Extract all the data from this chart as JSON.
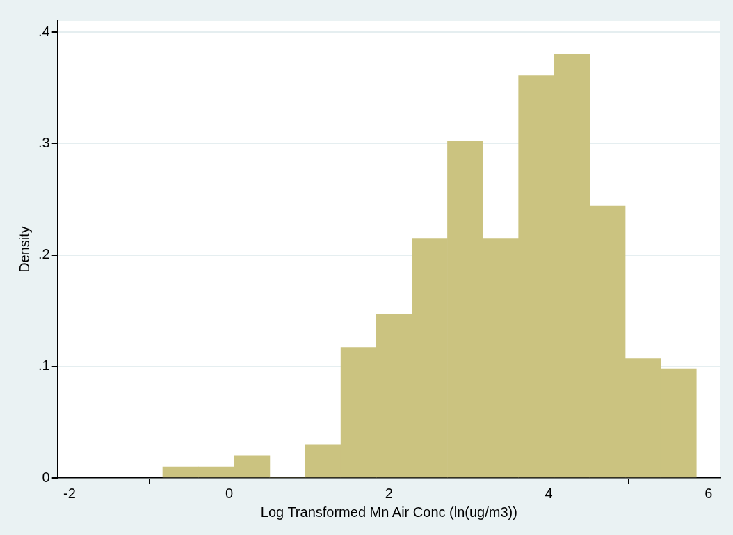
{
  "chart_data": {
    "type": "histogram",
    "xlabel": "Log Transformed Mn Air Conc (ln(ug/m3))",
    "ylabel": "Density",
    "bins": [
      -0.83,
      -0.39,
      0.06,
      0.51,
      0.95,
      1.4,
      1.84,
      2.29,
      2.73,
      3.18,
      3.62,
      4.07,
      4.51,
      4.96,
      5.4,
      5.85
    ],
    "values": [
      0.01,
      0.01,
      0.02,
      0,
      0.03,
      0.117,
      0.147,
      0.215,
      0.302,
      0.215,
      0.361,
      0.38,
      0.244,
      0.107,
      0.098
    ],
    "color": "#cbc380",
    "xlim": [
      -2.15,
      6.15
    ],
    "xticks": [
      -2,
      0,
      2,
      4,
      6
    ],
    "ylim": [
      0,
      0.41
    ],
    "yticks": [
      {
        "value": 0,
        "label": "0"
      },
      {
        "value": 0.1,
        "label": ".1"
      },
      {
        "value": 0.2,
        "label": ".2"
      },
      {
        "value": 0.3,
        "label": ".3"
      },
      {
        "value": 0.4,
        "label": ".4"
      }
    ],
    "grid": "y",
    "legend": false
  }
}
